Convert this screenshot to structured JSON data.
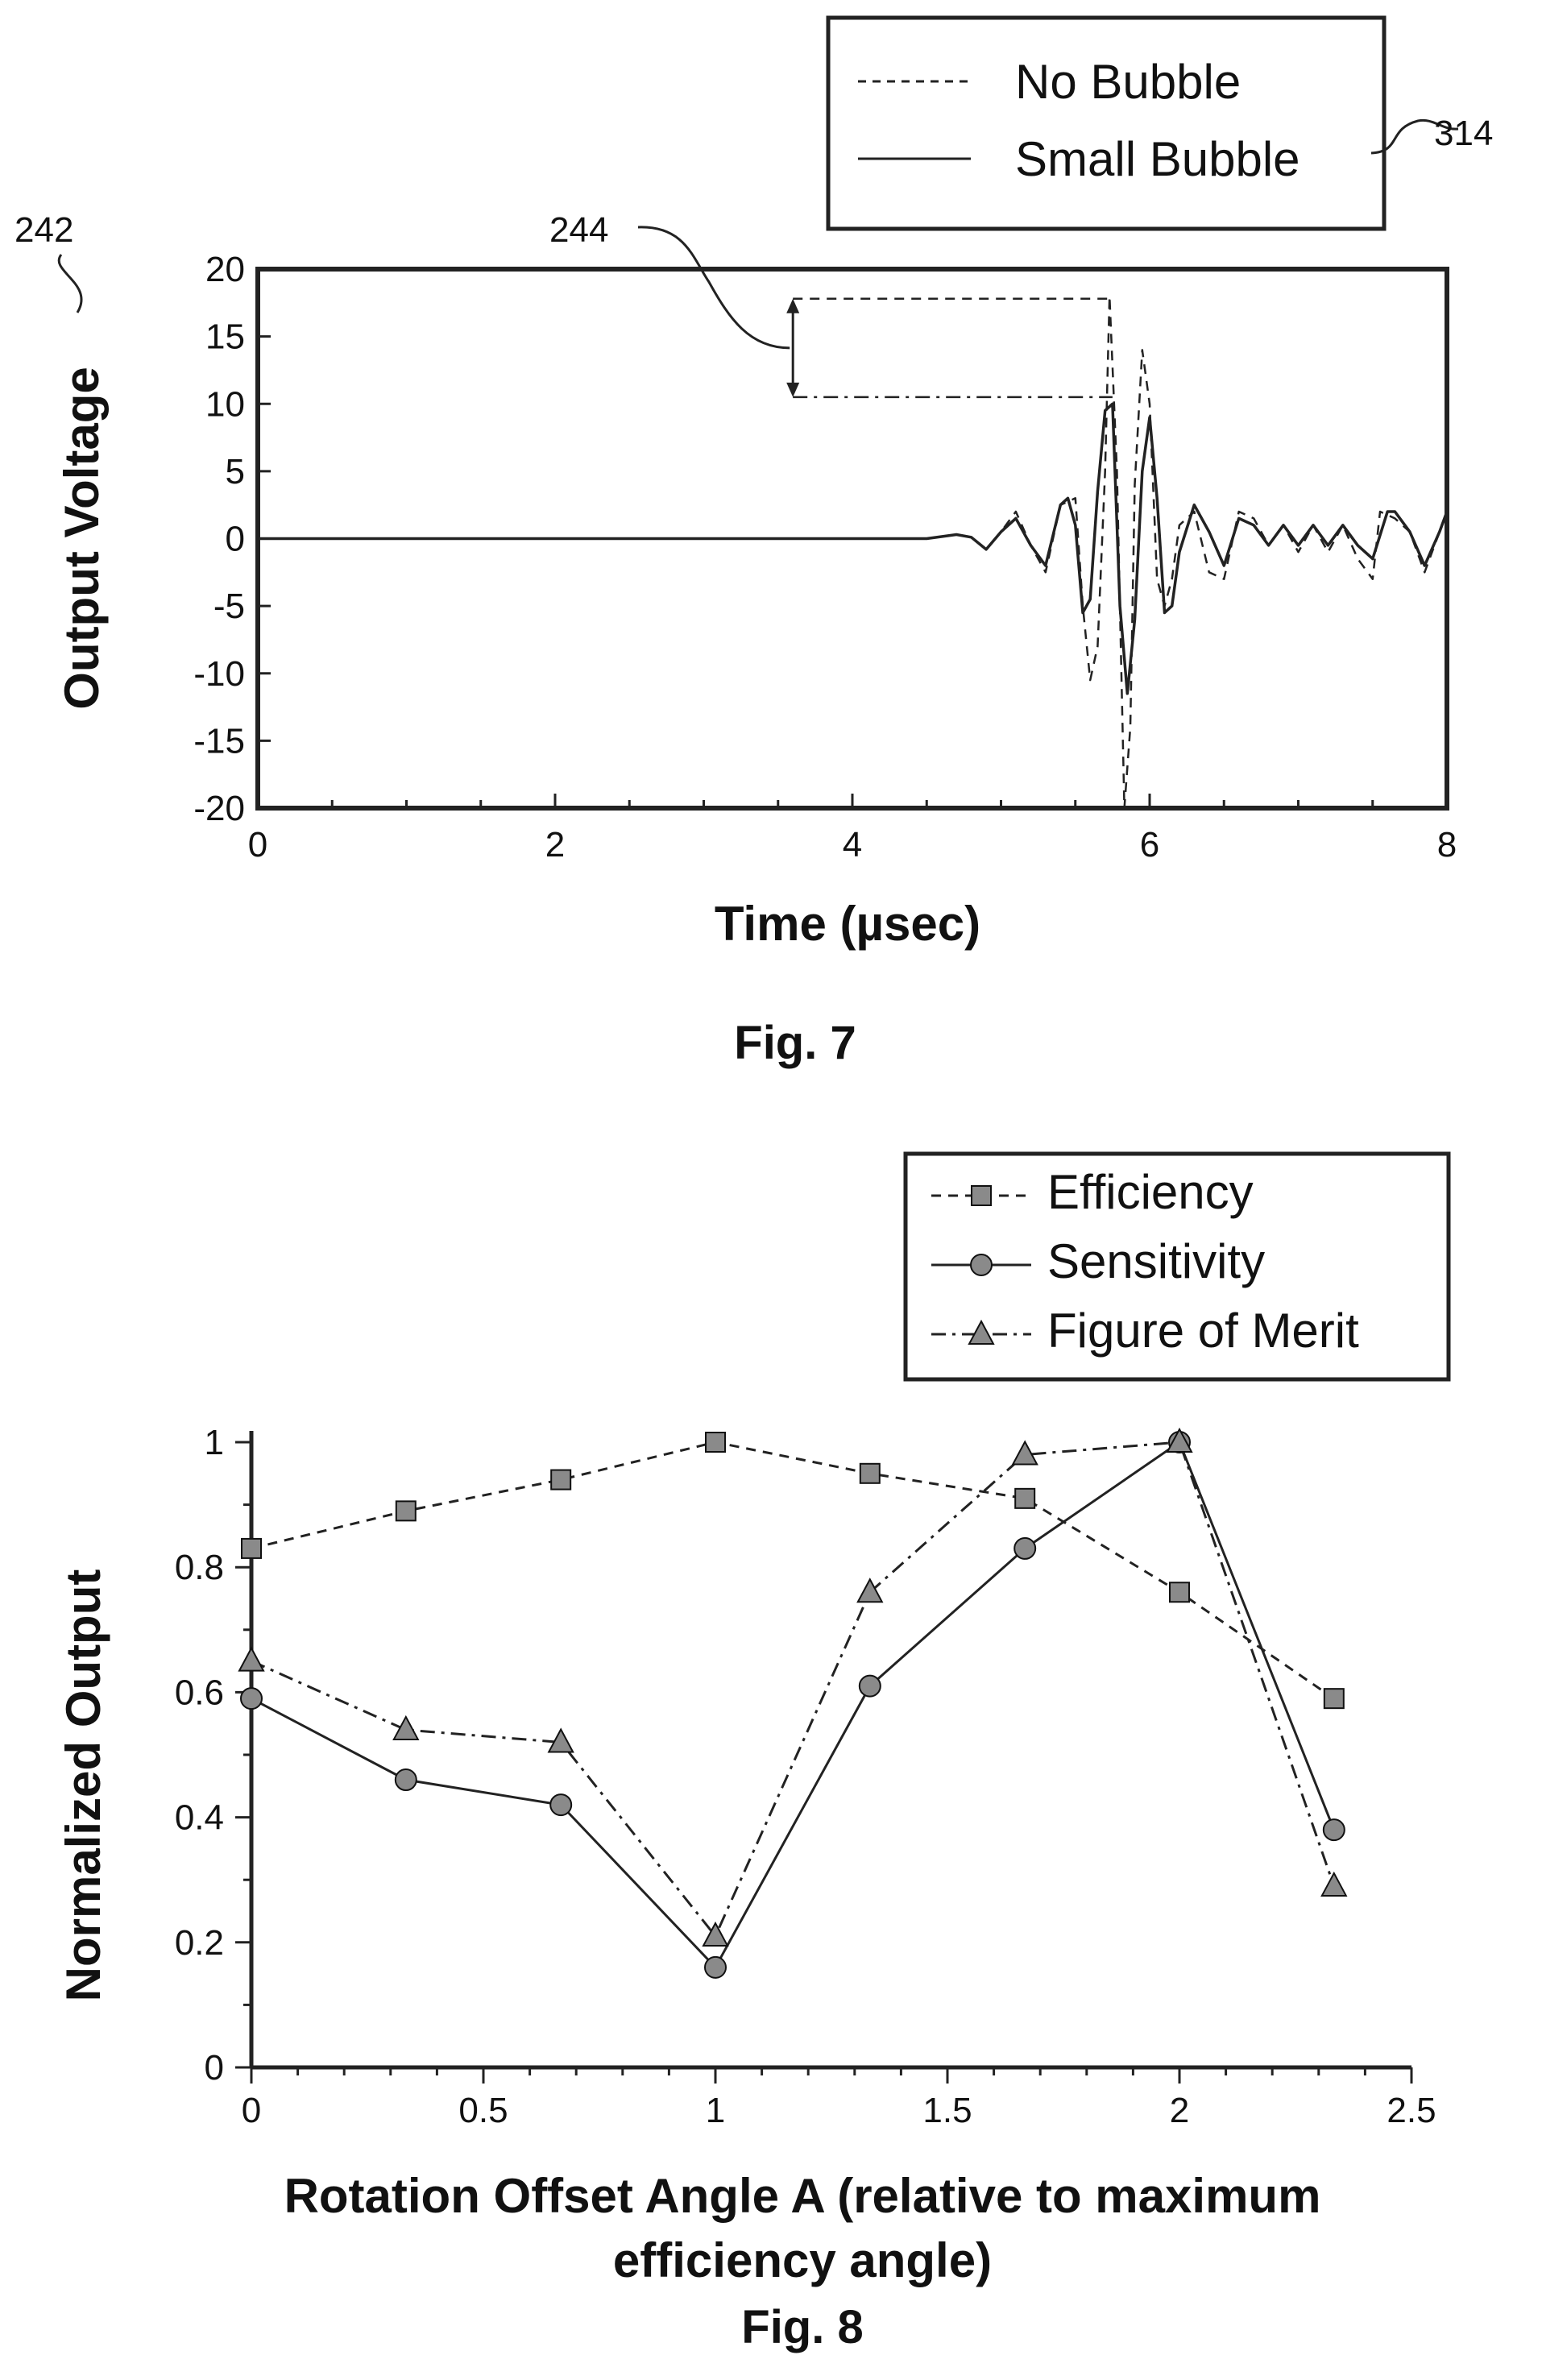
{
  "chart_data": [
    {
      "type": "line",
      "figure_label": "Fig. 7",
      "title": "",
      "xlabel": "Time (µsec)",
      "ylabel": "Output Voltage",
      "xlim": [
        0,
        8
      ],
      "ylim": [
        -20,
        20
      ],
      "x_ticks": [
        "0",
        "2",
        "4",
        "6",
        "8"
      ],
      "y_ticks": [
        "20",
        "15",
        "10",
        "5",
        "0",
        "-5",
        "-10",
        "-15",
        "-20"
      ],
      "grid": false,
      "legend": {
        "placement": "top-right, outside plot",
        "ref_label": "314"
      },
      "reference_labels": {
        "plot": "242",
        "amplitude_difference": "244"
      },
      "amplitude_marker": {
        "time": 3.6,
        "upper": 17.8,
        "lower": 10.5
      },
      "series": [
        {
          "name": "No Bubble",
          "style": "dashed",
          "x": [
            0,
            4.5,
            4.7,
            4.8,
            4.9,
            5.0,
            5.1,
            5.2,
            5.3,
            5.4,
            5.5,
            5.55,
            5.6,
            5.65,
            5.7,
            5.73,
            5.78,
            5.83,
            5.87,
            5.9,
            5.95,
            6.0,
            6.05,
            6.1,
            6.15,
            6.2,
            6.3,
            6.4,
            6.5,
            6.6,
            6.7,
            6.8,
            6.9,
            7.0,
            7.1,
            7.2,
            7.3,
            7.4,
            7.5,
            7.55,
            7.65,
            7.75,
            7.85,
            7.95,
            8.0
          ],
          "y": [
            0,
            0,
            0.3,
            0.1,
            -0.8,
            0.5,
            2.0,
            -0.5,
            -2.5,
            2.5,
            3.0,
            -5.0,
            -10.5,
            -8.0,
            5.0,
            18.0,
            5.0,
            -20.0,
            -14.0,
            4.0,
            14.0,
            10.0,
            -3.0,
            -5.0,
            -3.0,
            1.0,
            2.0,
            -2.5,
            -3.0,
            2.0,
            1.5,
            -0.5,
            1.0,
            -1.0,
            1.0,
            -1.0,
            1.0,
            -1.5,
            -3.0,
            2.0,
            1.5,
            0.5,
            -2.5,
            0.5,
            2.0
          ]
        },
        {
          "name": "Small Bubble",
          "style": "solid",
          "x": [
            0,
            4.5,
            4.7,
            4.8,
            4.9,
            5.0,
            5.1,
            5.2,
            5.3,
            5.4,
            5.45,
            5.5,
            5.55,
            5.6,
            5.65,
            5.7,
            5.75,
            5.8,
            5.85,
            5.9,
            5.95,
            6.0,
            6.05,
            6.1,
            6.15,
            6.2,
            6.3,
            6.4,
            6.5,
            6.6,
            6.7,
            6.8,
            6.9,
            7.0,
            7.1,
            7.2,
            7.3,
            7.4,
            7.5,
            7.6,
            7.65,
            7.75,
            7.85,
            7.95,
            8.0
          ],
          "y": [
            0,
            0,
            0.3,
            0.1,
            -0.8,
            0.5,
            1.5,
            -0.5,
            -2.0,
            2.5,
            3.0,
            1.0,
            -5.5,
            -4.5,
            3.5,
            9.5,
            10.0,
            -5.0,
            -11.5,
            -6.0,
            5.0,
            9.0,
            3.0,
            -5.5,
            -5.0,
            -1.0,
            2.5,
            0.5,
            -2.0,
            1.5,
            1.0,
            -0.5,
            1.0,
            -0.5,
            1.0,
            -0.5,
            1.0,
            -0.5,
            -1.5,
            2.0,
            2.0,
            0.5,
            -2.0,
            0.5,
            2.0
          ]
        }
      ]
    },
    {
      "type": "line",
      "figure_label": "Fig. 8",
      "title": "",
      "xlabel": "Rotation Offset Angle A (relative to maximum efficiency angle)",
      "xlabel_lines": [
        "Rotation Offset Angle A (relative to maximum",
        "efficiency angle)"
      ],
      "ylabel": "Normalized Output",
      "xlim": [
        0,
        2.5
      ],
      "ylim": [
        0,
        1
      ],
      "x_ticks": [
        "0",
        "0.5",
        "1",
        "1.5",
        "2",
        "2.5"
      ],
      "y_ticks": [
        "1",
        "0.8",
        "0.6",
        "0.4",
        "0.2",
        "0"
      ],
      "grid": false,
      "legend": {
        "placement": "top-right, outside plot"
      },
      "series": [
        {
          "name": "Efficiency",
          "style": "dashed",
          "marker": "square",
          "x": [
            0,
            0.333,
            0.667,
            1.0,
            1.333,
            1.667,
            2.0,
            2.333
          ],
          "y": [
            0.83,
            0.89,
            0.94,
            1.0,
            0.95,
            0.91,
            0.76,
            0.59
          ]
        },
        {
          "name": "Sensitivity",
          "style": "solid",
          "marker": "circle",
          "x": [
            0,
            0.333,
            0.667,
            1.0,
            1.333,
            1.667,
            2.0,
            2.333
          ],
          "y": [
            0.59,
            0.46,
            0.42,
            0.16,
            0.61,
            0.83,
            1.0,
            0.38
          ]
        },
        {
          "name": "Figure of Merit",
          "style": "dashdot",
          "marker": "triangle",
          "x": [
            0,
            0.333,
            0.667,
            1.0,
            1.333,
            1.667,
            2.0,
            2.333
          ],
          "y": [
            0.65,
            0.54,
            0.52,
            0.21,
            0.76,
            0.98,
            1.0,
            0.29
          ]
        }
      ]
    }
  ]
}
